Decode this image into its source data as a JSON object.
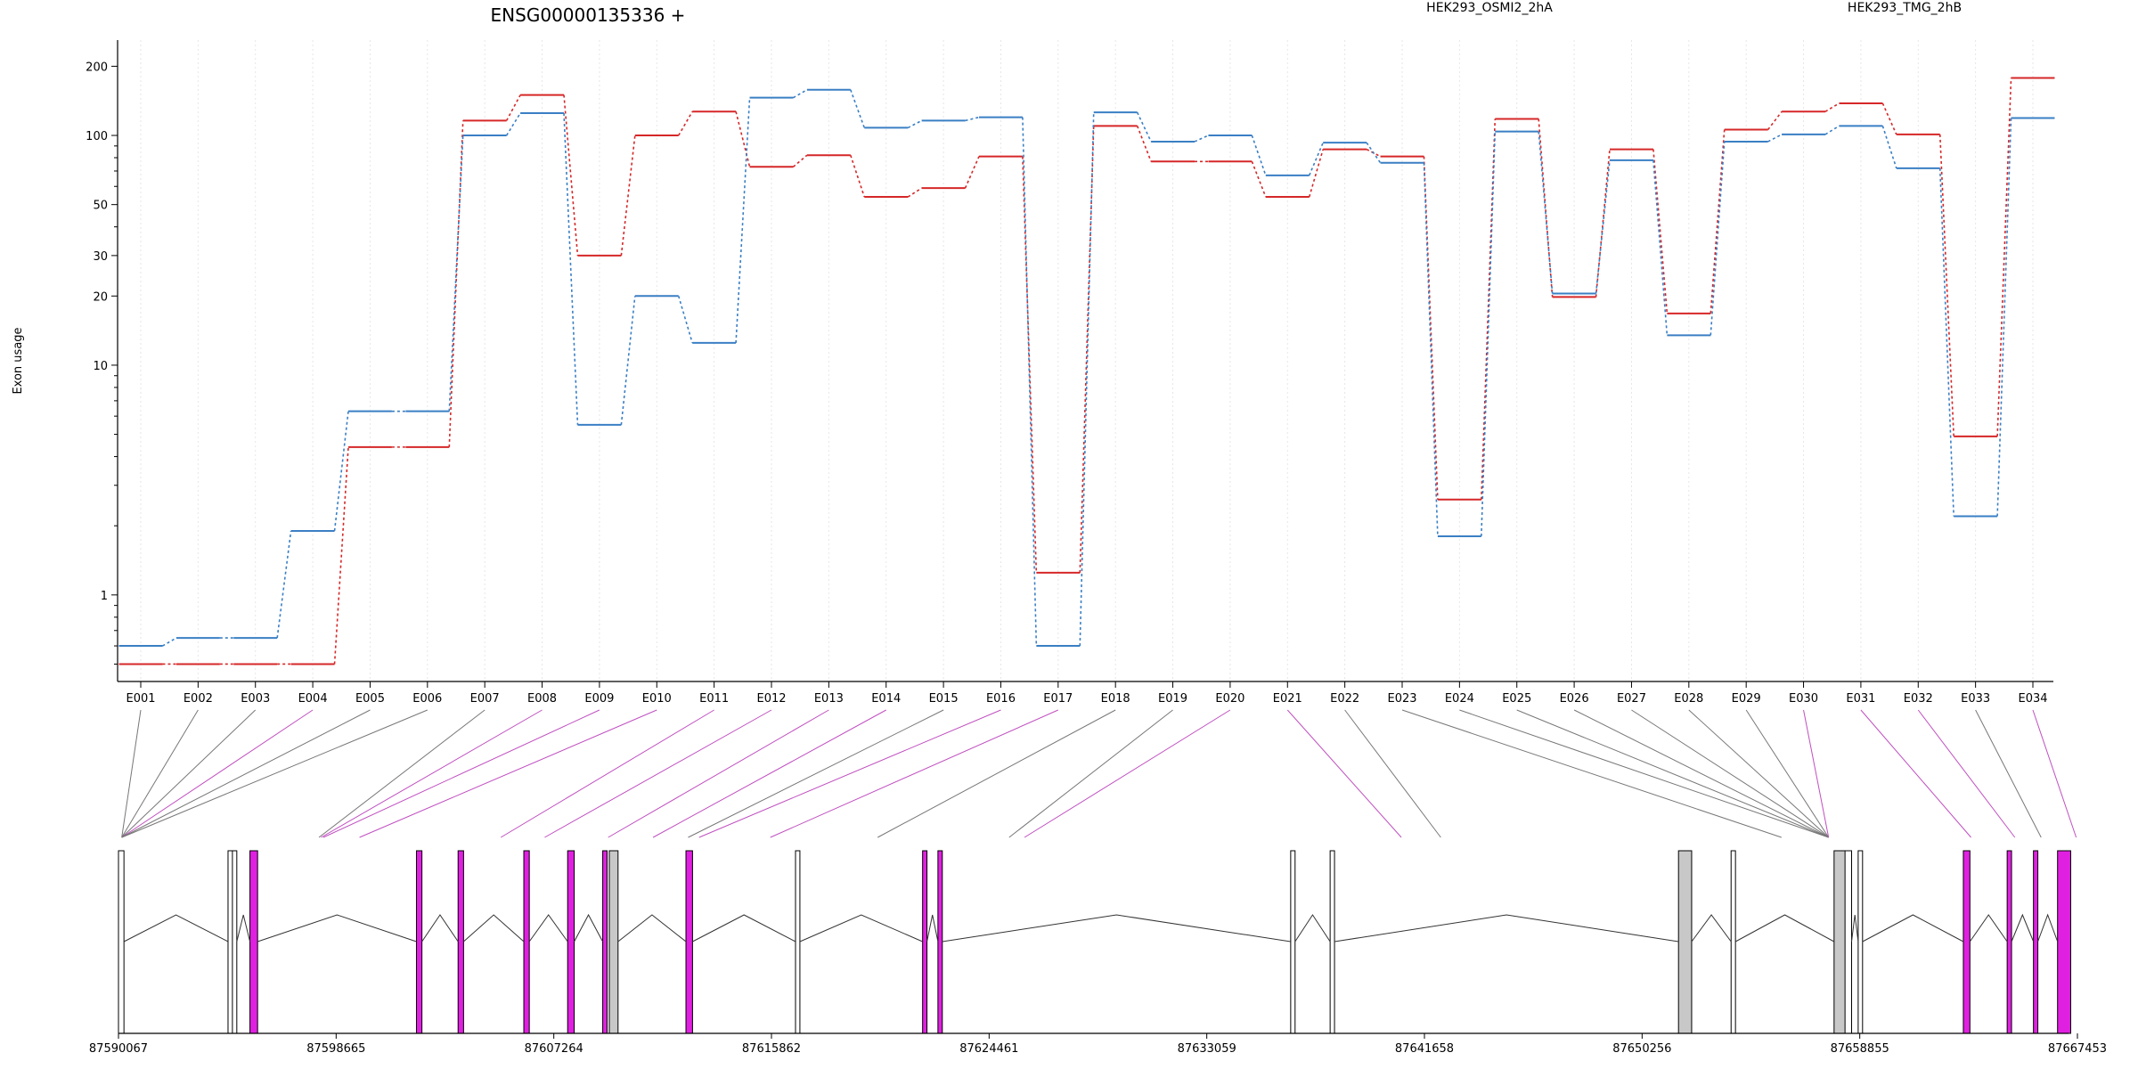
{
  "chart_data": {
    "type": "line",
    "title": "ENSG00000135336 +",
    "ylabel": "Exon usage",
    "xlabel": "",
    "yscale": "log",
    "ylim": [
      0.42,
      260
    ],
    "yticks": [
      1,
      10,
      20,
      30,
      50,
      100,
      200
    ],
    "grid": "vertical dotted at exons",
    "legend_placement": "top",
    "categories": [
      "E001",
      "E002",
      "E003",
      "E004",
      "E005",
      "E006",
      "E007",
      "E008",
      "E009",
      "E010",
      "E011",
      "E012",
      "E013",
      "E014",
      "E015",
      "E016",
      "E017",
      "E018",
      "E019",
      "E020",
      "E021",
      "E022",
      "E023",
      "E024",
      "E025",
      "E026",
      "E027",
      "E028",
      "E029",
      "E030",
      "E031",
      "E032",
      "E033",
      "E034"
    ],
    "series": [
      {
        "name": "HEK293_OSMI2_2hA",
        "color": "#d62728",
        "values": [
          0.5,
          0.5,
          0.5,
          0.5,
          4.4,
          4.4,
          116,
          150,
          30,
          100,
          127,
          73,
          82,
          54,
          59,
          81,
          1.25,
          110,
          77,
          77,
          54,
          87,
          81,
          2.6,
          118,
          19.8,
          87,
          16.8,
          106,
          127,
          138,
          101,
          4.9,
          178
        ]
      },
      {
        "name": "HEK293_TMG_2hB",
        "color": "#3a7fc4",
        "values": [
          0.6,
          0.65,
          0.65,
          1.9,
          6.3,
          6.3,
          100,
          125,
          5.5,
          20,
          12.5,
          146,
          158,
          108,
          116,
          120,
          0.6,
          126,
          94,
          100,
          67,
          93,
          76,
          1.8,
          104,
          20.5,
          78,
          13.5,
          94,
          101,
          110,
          72,
          2.2,
          119
        ]
      }
    ],
    "gene_model": {
      "coordinate_ticks": [
        "87590067",
        "87598665",
        "87607264",
        "87615862",
        "87624461",
        "87633059",
        "87641658",
        "87650256",
        "87658855",
        "87667453"
      ],
      "exon_colors": {
        "significant": "#e020e0",
        "normal": "#c8c8c8",
        "outline": "#000000"
      },
      "exon_significant": [
        false,
        false,
        false,
        true,
        false,
        false,
        false,
        true,
        true,
        true,
        true,
        true,
        true,
        true,
        false,
        true,
        true,
        false,
        false,
        true,
        true,
        false,
        false,
        false,
        false,
        false,
        false,
        false,
        false,
        true,
        true,
        true,
        false,
        true
      ]
    }
  }
}
